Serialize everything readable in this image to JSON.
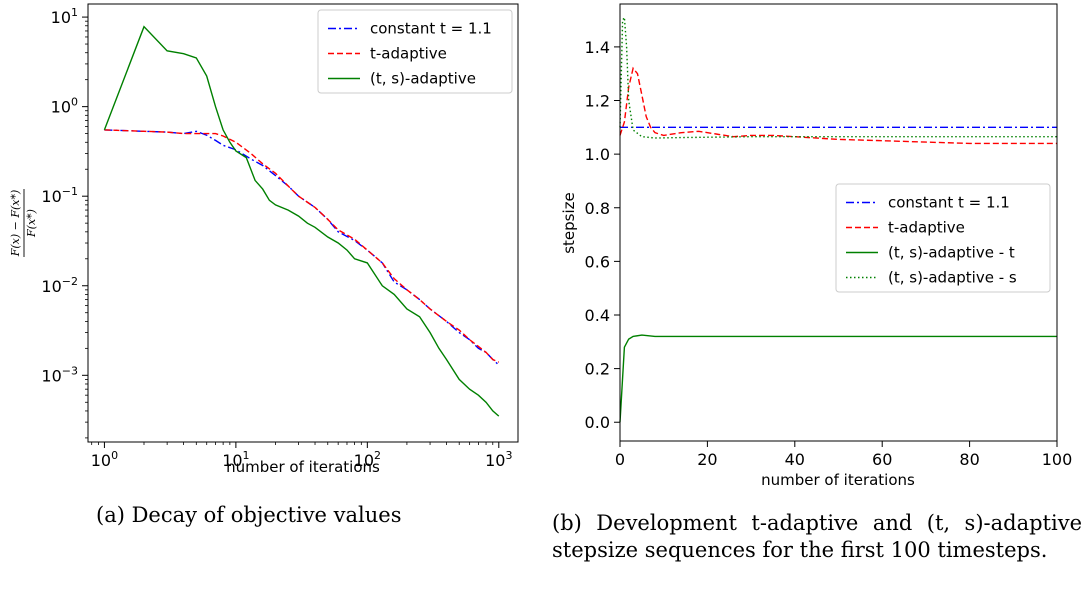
{
  "chart_data": [
    {
      "type": "line",
      "xscale": "log",
      "yscale": "log",
      "xlabel": "number of iterations",
      "ylabel": "F(x) − F(x*) / F(x*)",
      "xlim": [
        0.75,
        1400
      ],
      "ylim": [
        0.00018,
        14
      ],
      "x_ticks": [
        {
          "value": 1,
          "base": "10",
          "exp": "0"
        },
        {
          "value": 10,
          "base": "10",
          "exp": "1"
        },
        {
          "value": 100,
          "base": "10",
          "exp": "2"
        },
        {
          "value": 1000,
          "base": "10",
          "exp": "3"
        }
      ],
      "y_ticks": [
        {
          "value": 0.001,
          "base": "10",
          "exp": "−3"
        },
        {
          "value": 0.01,
          "base": "10",
          "exp": "−2"
        },
        {
          "value": 0.1,
          "base": "10",
          "exp": "−1"
        },
        {
          "value": 1,
          "base": "10",
          "exp": "0"
        },
        {
          "value": 10,
          "base": "10",
          "exp": "1"
        }
      ],
      "legend_position": "upper-right",
      "series": [
        {
          "name": "constant t = 1.1",
          "color": "#0000ff",
          "style": "dashdot",
          "points": [
            [
              1,
              0.55
            ],
            [
              2,
              0.53
            ],
            [
              3,
              0.52
            ],
            [
              4,
              0.5
            ],
            [
              5,
              0.53
            ],
            [
              6,
              0.48
            ],
            [
              7,
              0.42
            ],
            [
              8,
              0.37
            ],
            [
              10,
              0.33
            ],
            [
              13,
              0.26
            ],
            [
              16,
              0.22
            ],
            [
              20,
              0.17
            ],
            [
              25,
              0.13
            ],
            [
              30,
              0.1
            ],
            [
              40,
              0.075
            ],
            [
              50,
              0.055
            ],
            [
              60,
              0.04
            ],
            [
              80,
              0.032
            ],
            [
              100,
              0.025
            ],
            [
              130,
              0.018
            ],
            [
              160,
              0.011
            ],
            [
              200,
              0.009
            ],
            [
              250,
              0.007
            ],
            [
              300,
              0.0055
            ],
            [
              400,
              0.004
            ],
            [
              500,
              0.003
            ],
            [
              600,
              0.0025
            ],
            [
              700,
              0.002
            ],
            [
              800,
              0.0018
            ],
            [
              900,
              0.0015
            ],
            [
              1000,
              0.0013
            ]
          ]
        },
        {
          "name": "t-adaptive",
          "color": "#ff0000",
          "style": "dashed",
          "points": [
            [
              1,
              0.55
            ],
            [
              2,
              0.53
            ],
            [
              3,
              0.52
            ],
            [
              4,
              0.5
            ],
            [
              5,
              0.5
            ],
            [
              6,
              0.5
            ],
            [
              7,
              0.5
            ],
            [
              8,
              0.47
            ],
            [
              10,
              0.4
            ],
            [
              13,
              0.3
            ],
            [
              16,
              0.23
            ],
            [
              20,
              0.18
            ],
            [
              25,
              0.13
            ],
            [
              30,
              0.1
            ],
            [
              40,
              0.075
            ],
            [
              50,
              0.055
            ],
            [
              60,
              0.042
            ],
            [
              80,
              0.033
            ],
            [
              100,
              0.025
            ],
            [
              130,
              0.018
            ],
            [
              160,
              0.012
            ],
            [
              200,
              0.009
            ],
            [
              250,
              0.007
            ],
            [
              300,
              0.0055
            ],
            [
              400,
              0.004
            ],
            [
              500,
              0.0032
            ],
            [
              600,
              0.0025
            ],
            [
              700,
              0.0021
            ],
            [
              800,
              0.0018
            ],
            [
              900,
              0.0015
            ],
            [
              1000,
              0.0014
            ]
          ]
        },
        {
          "name": "(t, s)-adaptive",
          "color": "#008000",
          "style": "solid",
          "points": [
            [
              1,
              0.55
            ],
            [
              2,
              7.8
            ],
            [
              3,
              4.2
            ],
            [
              4,
              3.9
            ],
            [
              5,
              3.5
            ],
            [
              6,
              2.2
            ],
            [
              7,
              1.0
            ],
            [
              8,
              0.55
            ],
            [
              9,
              0.4
            ],
            [
              10,
              0.32
            ],
            [
              12,
              0.27
            ],
            [
              14,
              0.15
            ],
            [
              16,
              0.12
            ],
            [
              18,
              0.09
            ],
            [
              20,
              0.08
            ],
            [
              25,
              0.07
            ],
            [
              30,
              0.06
            ],
            [
              35,
              0.05
            ],
            [
              40,
              0.045
            ],
            [
              50,
              0.035
            ],
            [
              60,
              0.03
            ],
            [
              70,
              0.025
            ],
            [
              80,
              0.02
            ],
            [
              100,
              0.018
            ],
            [
              130,
              0.01
            ],
            [
              160,
              0.008
            ],
            [
              200,
              0.0055
            ],
            [
              250,
              0.0045
            ],
            [
              300,
              0.003
            ],
            [
              350,
              0.002
            ],
            [
              400,
              0.0015
            ],
            [
              500,
              0.0009
            ],
            [
              600,
              0.0007
            ],
            [
              700,
              0.0006
            ],
            [
              800,
              0.0005
            ],
            [
              900,
              0.0004
            ],
            [
              1000,
              0.00035
            ]
          ]
        }
      ]
    },
    {
      "type": "line",
      "xlabel": "number of iterations",
      "ylabel": "stepsize",
      "xlim": [
        0,
        100
      ],
      "ylim": [
        -0.07,
        1.56
      ],
      "x_ticks": [
        0,
        20,
        40,
        60,
        80,
        100
      ],
      "y_ticks": [
        "0.0",
        "0.2",
        "0.4",
        "0.6",
        "0.8",
        "1.0",
        "1.2",
        "1.4"
      ],
      "legend_position": "center-right",
      "series": [
        {
          "name": "constant t = 1.1",
          "color": "#0000ff",
          "style": "dashdot",
          "points": [
            [
              0,
              1.1
            ],
            [
              100,
              1.1
            ]
          ]
        },
        {
          "name": "t-adaptive",
          "color": "#ff0000",
          "style": "dashed",
          "points": [
            [
              0,
              1.07
            ],
            [
              1,
              1.12
            ],
            [
              2,
              1.25
            ],
            [
              3,
              1.32
            ],
            [
              4,
              1.3
            ],
            [
              5,
              1.22
            ],
            [
              6,
              1.14
            ],
            [
              7,
              1.1
            ],
            [
              8,
              1.08
            ],
            [
              10,
              1.07
            ],
            [
              14,
              1.08
            ],
            [
              18,
              1.085
            ],
            [
              22,
              1.075
            ],
            [
              26,
              1.065
            ],
            [
              30,
              1.07
            ],
            [
              35,
              1.07
            ],
            [
              40,
              1.065
            ],
            [
              50,
              1.055
            ],
            [
              60,
              1.05
            ],
            [
              70,
              1.045
            ],
            [
              80,
              1.04
            ],
            [
              90,
              1.04
            ],
            [
              100,
              1.04
            ]
          ]
        },
        {
          "name": "(t, s)-adaptive - t",
          "color": "#008000",
          "style": "solid",
          "points": [
            [
              0,
              0
            ],
            [
              1,
              0.28
            ],
            [
              2,
              0.31
            ],
            [
              3,
              0.32
            ],
            [
              5,
              0.325
            ],
            [
              8,
              0.32
            ],
            [
              100,
              0.32
            ]
          ]
        },
        {
          "name": "(t, s)-adaptive - s",
          "color": "#008000",
          "style": "dotted",
          "points": [
            [
              0,
              1.1
            ],
            [
              0.6,
              1.5
            ],
            [
              1,
              1.51
            ],
            [
              1.5,
              1.4
            ],
            [
              2,
              1.2
            ],
            [
              3,
              1.09
            ],
            [
              5,
              1.065
            ],
            [
              8,
              1.06
            ],
            [
              15,
              1.062
            ],
            [
              30,
              1.065
            ],
            [
              60,
              1.065
            ],
            [
              100,
              1.065
            ]
          ]
        }
      ]
    }
  ],
  "captions": {
    "a": "(a) Decay of objective values",
    "b": "(b) Development t-adaptive and (t, s)-adaptive stepsize sequences for the first 100 timesteps."
  }
}
